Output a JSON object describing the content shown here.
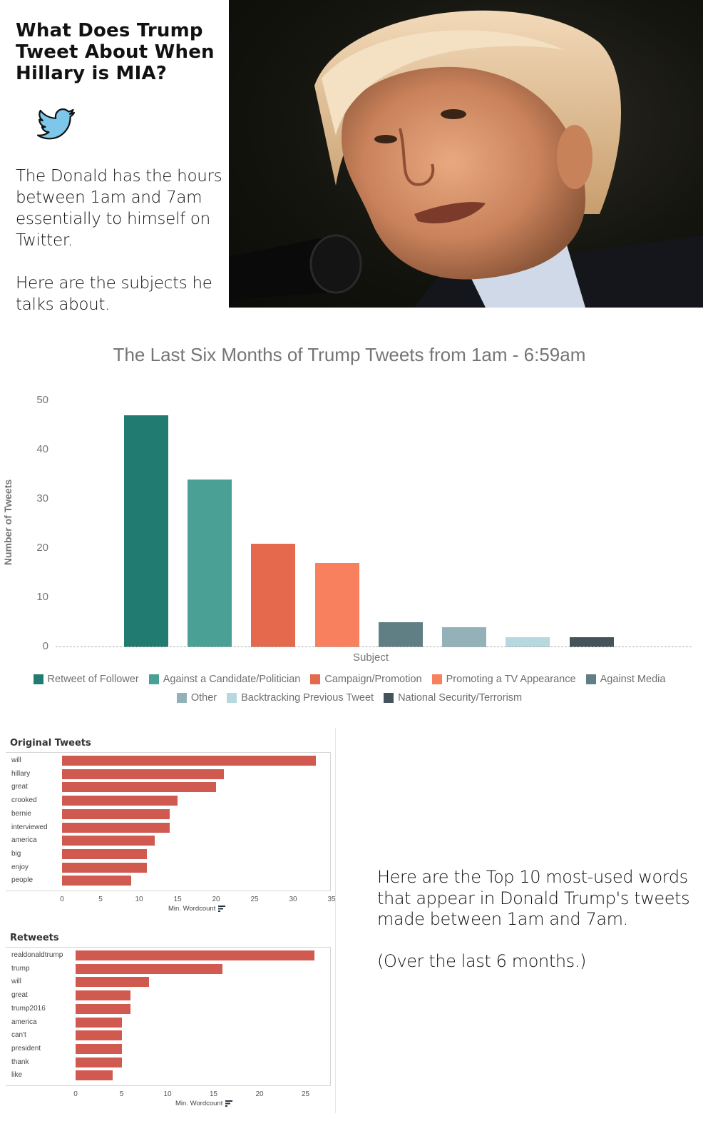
{
  "header": {
    "headline": "What Does Trump Tweet About When Hillary is MIA?",
    "icon": "twitter-bird-icon",
    "intro_paragraphs": [
      "The Donald has the hours between 1am and 7am essentially to himself on Twitter.",
      "Here are the subjects he talks about."
    ],
    "photo_alt": "Donald Trump speaking at a microphone"
  },
  "chart_data": [
    {
      "type": "bar",
      "title": "The Last Six Months of Trump Tweets from 1am - 6:59am",
      "xlabel": "Subject",
      "ylabel": "Number of Tweets",
      "ylim": [
        0,
        50
      ],
      "yticks": [
        0,
        10,
        20,
        30,
        40,
        50
      ],
      "grid": false,
      "legend_position": "bottom",
      "categories": [
        "Retweet of Follower",
        "Against a Candidate/Politician",
        "Campaign/Promotion",
        "Promoting a TV Appearance",
        "Against Media",
        "Other",
        "Backtracking Previous Tweet",
        "National Security/Terrorism"
      ],
      "values": [
        47,
        34,
        21,
        17,
        5,
        4,
        2,
        2
      ],
      "colors": [
        "#227b70",
        "#4aa095",
        "#e5694c",
        "#f9805f",
        "#5f7f85",
        "#93b1b6",
        "#b7d8de",
        "#44545a"
      ]
    },
    {
      "type": "bar",
      "orientation": "horizontal",
      "title": "Original Tweets",
      "xlabel": "Min. Wordcount",
      "xlim": [
        0,
        35
      ],
      "xticks": [
        0,
        5,
        10,
        15,
        20,
        25,
        30,
        35
      ],
      "categories": [
        "will",
        "hillary",
        "great",
        "crooked",
        "bernie",
        "interviewed",
        "america",
        "big",
        "enjoy",
        "people"
      ],
      "values": [
        33,
        21,
        20,
        15,
        14,
        14,
        12,
        11,
        11,
        9
      ],
      "color": "#d05a50"
    },
    {
      "type": "bar",
      "orientation": "horizontal",
      "title": "Retweets",
      "xlabel": "Min. Wordcount",
      "xlim": [
        0,
        27
      ],
      "xticks": [
        0,
        5,
        10,
        15,
        20,
        25
      ],
      "categories": [
        "realdonaldtrump",
        "trump",
        "will",
        "great",
        "trump2016",
        "america",
        "can't",
        "president",
        "thank",
        "like"
      ],
      "values": [
        26,
        16,
        8,
        6,
        6,
        5,
        5,
        5,
        5,
        4
      ],
      "color": "#d05a50"
    }
  ],
  "outro_paragraphs": [
    "Here are the Top 10 most-used words that appear in Donald Trump's tweets made between 1am and 7am.",
    "(Over the last 6 months.)"
  ]
}
